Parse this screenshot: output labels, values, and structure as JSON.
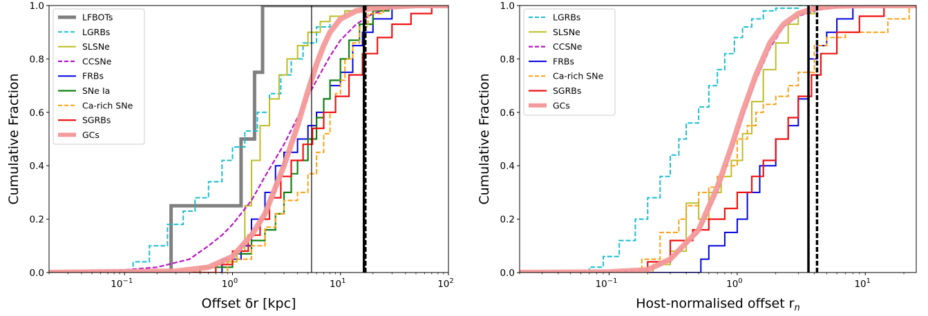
{
  "chart_data": [
    {
      "type": "line",
      "subtype": "step-cdf",
      "xlabel": "Offset δr [kpc]",
      "ylabel": "Cumulative Fraction",
      "xscale": "log",
      "xlim": [
        0.02,
        100
      ],
      "ylim": [
        0,
        1
      ],
      "xticks": [
        {
          "value": 0.1,
          "label": "10",
          "exp": "−1"
        },
        {
          "value": 1,
          "label": "10",
          "exp": "0"
        },
        {
          "value": 10,
          "label": "10",
          "exp": "1"
        },
        {
          "value": 100,
          "label": "10",
          "exp": "2"
        }
      ],
      "yticks": [
        "0.0",
        "0.2",
        "0.4",
        "0.6",
        "0.8",
        "1.0"
      ],
      "legend_position": "top-left",
      "grid": false,
      "vlines": [
        {
          "x": 5.4,
          "color": "#000000",
          "style": "solid",
          "weight": "thin"
        },
        {
          "x": 16.5,
          "color": "#000000",
          "style": "solid",
          "weight": "thick"
        },
        {
          "x": 17.0,
          "color": "#000000",
          "style": "dashed",
          "weight": "thick"
        }
      ],
      "series": [
        {
          "name": "LFBOTs",
          "color": "#808080",
          "style": "solid",
          "width": 5,
          "step": true,
          "x": [
            0.02,
            0.27,
            0.27,
            1.2,
            1.2,
            1.6,
            1.6,
            1.9,
            1.9
          ],
          "y": [
            0,
            0,
            0.25,
            0.25,
            0.5,
            0.5,
            0.75,
            0.75,
            1.0
          ]
        },
        {
          "name": "LGRBs",
          "color": "#17becf",
          "style": "dashed",
          "width": 2,
          "step": true,
          "x": [
            0.02,
            0.09,
            0.12,
            0.17,
            0.25,
            0.35,
            0.45,
            0.6,
            0.8,
            1.0,
            1.3,
            1.7,
            2.2,
            2.8,
            3.5,
            4.5,
            6.0,
            8.0,
            11,
            16,
            25
          ],
          "y": [
            0,
            0.01,
            0.04,
            0.1,
            0.18,
            0.23,
            0.28,
            0.34,
            0.42,
            0.47,
            0.53,
            0.6,
            0.67,
            0.74,
            0.8,
            0.86,
            0.92,
            0.96,
            0.98,
            0.99,
            1.0
          ]
        },
        {
          "name": "SLSNe",
          "color": "#bcbd22",
          "style": "solid",
          "width": 2,
          "step": true,
          "x": [
            0.02,
            0.5,
            0.8,
            1.1,
            1.3,
            1.5,
            1.8,
            2.2,
            2.7,
            3.2,
            4.0,
            5.0,
            6.5,
            8.0,
            11,
            16,
            25
          ],
          "y": [
            0,
            0.02,
            0.04,
            0.08,
            0.25,
            0.42,
            0.55,
            0.65,
            0.74,
            0.8,
            0.85,
            0.9,
            0.94,
            0.96,
            0.98,
            0.99,
            1.0
          ]
        },
        {
          "name": "CCSNe",
          "color": "#b714c2",
          "style": "dashed",
          "width": 2.2,
          "step": false,
          "x": [
            0.02,
            0.1,
            0.2,
            0.4,
            0.6,
            0.8,
            1.0,
            1.5,
            2.0,
            3.0,
            4.0,
            5.0,
            6.0,
            8.0,
            10,
            14,
            20,
            30,
            50
          ],
          "y": [
            0,
            0.01,
            0.02,
            0.05,
            0.1,
            0.14,
            0.18,
            0.27,
            0.36,
            0.48,
            0.58,
            0.66,
            0.72,
            0.81,
            0.87,
            0.93,
            0.97,
            0.99,
            1.0
          ]
        },
        {
          "name": "FRBs",
          "color": "#0000e0",
          "style": "solid",
          "width": 2,
          "step": true,
          "x": [
            0.02,
            0.8,
            1.2,
            1.5,
            2.0,
            2.5,
            3.0,
            4.0,
            5.0,
            6.0,
            7.0,
            8.0,
            10,
            13,
            16,
            20,
            30
          ],
          "y": [
            0,
            0.05,
            0.1,
            0.2,
            0.3,
            0.4,
            0.45,
            0.5,
            0.55,
            0.6,
            0.65,
            0.7,
            0.75,
            0.85,
            0.9,
            0.95,
            1.0
          ]
        },
        {
          "name": "SNe Ia",
          "color": "#108010",
          "style": "solid",
          "width": 2.2,
          "step": true,
          "x": [
            0.02,
            0.5,
            1.0,
            1.5,
            2.0,
            2.5,
            3.0,
            3.5,
            4.0,
            5.0,
            6.0,
            7.0,
            8.0,
            10,
            12,
            15,
            20,
            28
          ],
          "y": [
            0,
            0.02,
            0.07,
            0.12,
            0.16,
            0.22,
            0.3,
            0.37,
            0.42,
            0.5,
            0.58,
            0.65,
            0.72,
            0.8,
            0.87,
            0.93,
            0.98,
            1.0
          ]
        },
        {
          "name": "Ca-rich SNe",
          "color": "#ff9f0e",
          "style": "dashed",
          "width": 2,
          "step": true,
          "x": [
            0.02,
            0.9,
            1.5,
            2.0,
            2.5,
            3.0,
            4.0,
            5.0,
            6.0,
            7.0,
            8.0,
            9.0,
            10,
            11,
            13,
            15,
            18,
            25
          ],
          "y": [
            0,
            0.05,
            0.1,
            0.17,
            0.22,
            0.27,
            0.3,
            0.37,
            0.45,
            0.52,
            0.6,
            0.67,
            0.72,
            0.8,
            0.86,
            0.92,
            0.97,
            1.0
          ]
        },
        {
          "name": "SGRBs",
          "color": "#f01010",
          "style": "solid",
          "width": 2.2,
          "step": true,
          "x": [
            0.02,
            0.7,
            1.0,
            1.4,
            1.8,
            2.2,
            2.8,
            3.5,
            4.5,
            5.5,
            7.0,
            9.0,
            12,
            16,
            22,
            30,
            45,
            70
          ],
          "y": [
            0,
            0.03,
            0.08,
            0.14,
            0.2,
            0.28,
            0.36,
            0.42,
            0.48,
            0.54,
            0.6,
            0.66,
            0.74,
            0.82,
            0.88,
            0.93,
            0.97,
            1.0
          ]
        },
        {
          "name": "GCs",
          "color": "#f49a9a",
          "style": "solid",
          "width": 8,
          "step": false,
          "x": [
            0.02,
            0.3,
            0.6,
            1.0,
            1.5,
            2.0,
            3.0,
            4.0,
            5.0,
            6.0,
            7.0,
            8.0,
            10,
            14,
            20,
            30,
            50
          ],
          "y": [
            0,
            0.005,
            0.02,
            0.06,
            0.14,
            0.22,
            0.4,
            0.55,
            0.68,
            0.78,
            0.85,
            0.9,
            0.95,
            0.98,
            0.99,
            0.995,
            1.0
          ]
        }
      ]
    },
    {
      "type": "line",
      "subtype": "step-cdf",
      "xlabel": "Host-normalised offset r",
      "xlabel_sub": "n",
      "ylabel": "Cumulative Fraction",
      "xscale": "log",
      "xlim": [
        0.02,
        25
      ],
      "ylim": [
        0,
        1
      ],
      "xticks": [
        {
          "value": 0.1,
          "label": "10",
          "exp": "−1"
        },
        {
          "value": 1,
          "label": "10",
          "exp": "0"
        },
        {
          "value": 10,
          "label": "10",
          "exp": "1"
        }
      ],
      "yticks": [
        "0.0",
        "0.2",
        "0.4",
        "0.6",
        "0.8",
        "1.0"
      ],
      "legend_position": "top-left",
      "grid": false,
      "vlines": [
        {
          "x": 3.6,
          "color": "#000000",
          "style": "solid",
          "weight": "thick"
        },
        {
          "x": 4.2,
          "color": "#000000",
          "style": "dashed",
          "weight": "thick"
        }
      ],
      "series": [
        {
          "name": "LGRBs",
          "color": "#17becf",
          "style": "dashed",
          "width": 2,
          "step": true,
          "x": [
            0.02,
            0.07,
            0.09,
            0.12,
            0.16,
            0.2,
            0.25,
            0.3,
            0.35,
            0.4,
            0.5,
            0.6,
            0.7,
            0.8,
            0.95,
            1.1,
            1.3,
            1.6,
            2.0,
            3.0,
            4.0
          ],
          "y": [
            0,
            0.02,
            0.06,
            0.12,
            0.2,
            0.28,
            0.36,
            0.44,
            0.5,
            0.56,
            0.62,
            0.7,
            0.76,
            0.82,
            0.88,
            0.92,
            0.95,
            0.98,
            0.99,
            1.0,
            1.0
          ]
        },
        {
          "name": "SLSNe",
          "color": "#bcbd22",
          "style": "solid",
          "width": 2,
          "step": true,
          "x": [
            0.02,
            0.22,
            0.3,
            0.4,
            0.5,
            0.6,
            0.75,
            0.9,
            1.1,
            1.3,
            1.6,
            2.0,
            2.5,
            3.0,
            4.0,
            5.0
          ],
          "y": [
            0,
            0.03,
            0.08,
            0.26,
            0.2,
            0.3,
            0.36,
            0.42,
            0.52,
            0.64,
            0.76,
            0.86,
            0.93,
            0.97,
            0.99,
            1.0
          ]
        },
        {
          "name": "CCSNe",
          "color": "#b714c2",
          "style": "dashed",
          "width": 2.2,
          "step": false,
          "x": [
            0.02,
            0.1,
            0.2,
            0.3,
            0.5,
            0.7,
            0.9,
            1.1,
            1.4,
            1.8,
            2.3,
            3.0,
            4.0,
            6.0,
            10
          ],
          "y": [
            0,
            0.002,
            0.01,
            0.05,
            0.15,
            0.3,
            0.45,
            0.58,
            0.72,
            0.84,
            0.92,
            0.96,
            0.98,
            0.995,
            1.0
          ]
        },
        {
          "name": "FRBs",
          "color": "#0000e0",
          "style": "solid",
          "width": 2,
          "step": true,
          "x": [
            0.02,
            0.52,
            0.6,
            0.8,
            1.0,
            1.2,
            1.5,
            2.0,
            2.5,
            3.0,
            3.6,
            4.2,
            5.0,
            6.0,
            8.0
          ],
          "y": [
            0,
            0.05,
            0.1,
            0.15,
            0.2,
            0.3,
            0.4,
            0.5,
            0.55,
            0.65,
            0.8,
            0.85,
            0.9,
            0.95,
            1.0
          ]
        },
        {
          "name": "Ca-rich SNe",
          "color": "#ff9f0e",
          "style": "dashed",
          "width": 2,
          "step": true,
          "x": [
            0.02,
            0.18,
            0.25,
            0.35,
            0.4,
            0.5,
            0.6,
            0.7,
            0.8,
            1.0,
            1.2,
            1.4,
            1.6,
            2.0,
            2.5,
            3.0,
            4.0,
            5.0,
            7.0,
            9.0,
            15,
            22
          ],
          "y": [
            0,
            0.05,
            0.15,
            0.2,
            0.25,
            0.3,
            0.32,
            0.36,
            0.4,
            0.5,
            0.55,
            0.6,
            0.63,
            0.66,
            0.7,
            0.75,
            0.85,
            0.88,
            0.9,
            0.9,
            0.95,
            1.0
          ]
        },
        {
          "name": "SGRBs",
          "color": "#f01010",
          "style": "solid",
          "width": 2.2,
          "step": true,
          "x": [
            0.02,
            0.2,
            0.3,
            0.45,
            0.6,
            0.8,
            1.0,
            1.3,
            1.6,
            2.0,
            2.5,
            3.0,
            3.8,
            4.5,
            6.0,
            9.0,
            14
          ],
          "y": [
            0,
            0.04,
            0.12,
            0.16,
            0.2,
            0.24,
            0.3,
            0.36,
            0.42,
            0.5,
            0.58,
            0.66,
            0.74,
            0.82,
            0.9,
            0.96,
            1.0
          ]
        },
        {
          "name": "GCs",
          "color": "#f49a9a",
          "style": "solid",
          "width": 8,
          "step": false,
          "x": [
            0.02,
            0.1,
            0.2,
            0.3,
            0.5,
            0.7,
            0.9,
            1.1,
            1.4,
            1.8,
            2.3,
            3.0,
            4.0,
            6.0,
            10
          ],
          "y": [
            0,
            0.002,
            0.01,
            0.05,
            0.16,
            0.32,
            0.47,
            0.6,
            0.74,
            0.86,
            0.93,
            0.97,
            0.99,
            0.998,
            1.0
          ]
        }
      ]
    }
  ]
}
